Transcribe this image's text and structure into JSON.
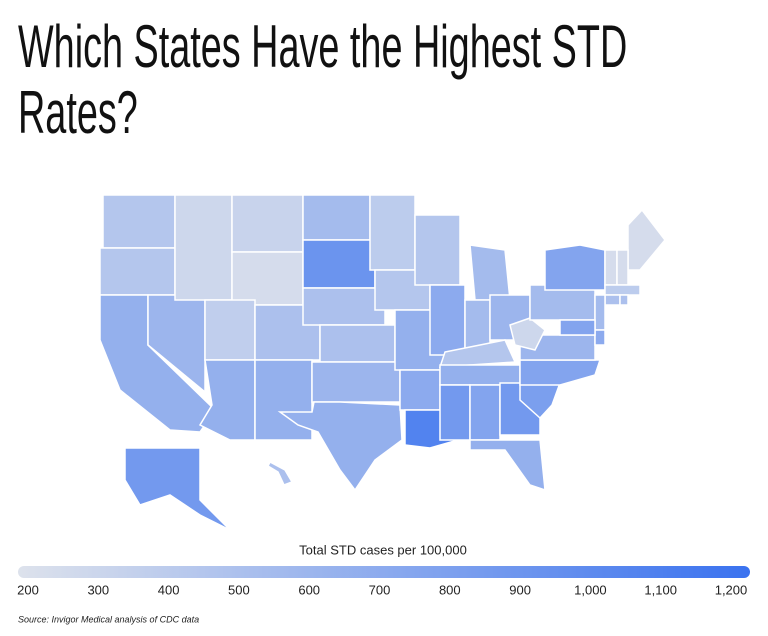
{
  "chart_data": {
    "type": "choropleth",
    "title": "Which States Have the Highest STD Rates?",
    "values": [
      450,
      450,
      650,
      600,
      300,
      330,
      250,
      380,
      500,
      650,
      650,
      550,
      900,
      500,
      500,
      600,
      650,
      400,
      450,
      650,
      700,
      1050,
      450,
      700,
      550,
      550,
      600,
      450,
      650,
      850,
      750,
      850,
      650,
      800,
      750,
      600,
      300,
      550,
      750,
      250,
      250,
      250,
      400,
      500,
      500,
      550,
      700,
      750,
      850,
      500
    ],
    "colorlim": [
      200,
      1200
    ],
    "colors": [
      "#dde2ec",
      "#3a72ef"
    ],
    "legend": {
      "title": "Total STD cases per 100,000",
      "ticks": [
        200,
        300,
        400,
        500,
        600,
        700,
        800,
        900,
        {
          "value": 1000,
          "label": "1,000"
        },
        {
          "value": 1100,
          "label": "1,100"
        },
        {
          "value": 1200,
          "label": "1,200"
        }
      ]
    },
    "source": "Source: Invigor Medical analysis of CDC data"
  }
}
